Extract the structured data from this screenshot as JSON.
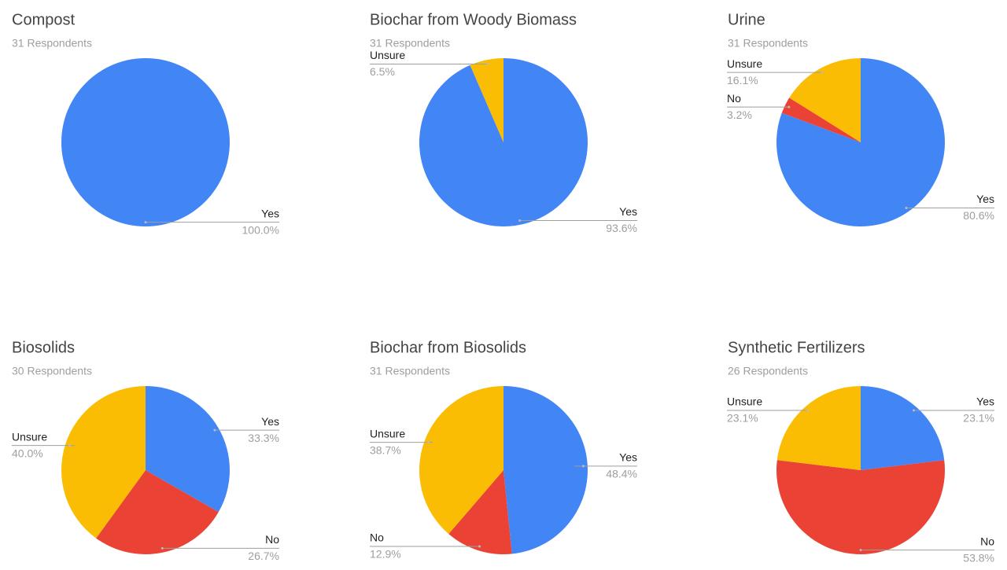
{
  "chart_data": [
    {
      "type": "pie",
      "title": "Compost",
      "subtitle": "31 Respondents",
      "categories": [
        "Yes"
      ],
      "values": [
        100.0
      ],
      "value_labels": [
        "100.0%"
      ],
      "colors": [
        "#4285f4"
      ]
    },
    {
      "type": "pie",
      "title": "Biochar from Woody Biomass",
      "subtitle": "31 Respondents",
      "categories": [
        "Yes",
        "Unsure"
      ],
      "values": [
        93.6,
        6.5
      ],
      "value_labels": [
        "93.6%",
        "6.5%"
      ],
      "colors": [
        "#4285f4",
        "#fbbc04"
      ]
    },
    {
      "type": "pie",
      "title": "Urine",
      "subtitle": "31 Respondents",
      "categories": [
        "Yes",
        "No",
        "Unsure"
      ],
      "values": [
        80.6,
        3.2,
        16.1
      ],
      "value_labels": [
        "80.6%",
        "3.2%",
        "16.1%"
      ],
      "colors": [
        "#4285f4",
        "#ea4335",
        "#fbbc04"
      ]
    },
    {
      "type": "pie",
      "title": "Biosolids",
      "subtitle": "30 Respondents",
      "categories": [
        "Yes",
        "No",
        "Unsure"
      ],
      "values": [
        33.3,
        26.7,
        40.0
      ],
      "value_labels": [
        "33.3%",
        "26.7%",
        "40.0%"
      ],
      "colors": [
        "#4285f4",
        "#ea4335",
        "#fbbc04"
      ]
    },
    {
      "type": "pie",
      "title": "Biochar from Biosolids",
      "subtitle": "31 Respondents",
      "categories": [
        "Yes",
        "No",
        "Unsure"
      ],
      "values": [
        48.4,
        12.9,
        38.7
      ],
      "value_labels": [
        "48.4%",
        "12.9%",
        "38.7%"
      ],
      "colors": [
        "#4285f4",
        "#ea4335",
        "#fbbc04"
      ]
    },
    {
      "type": "pie",
      "title": "Synthetic Fertilizers",
      "subtitle": "26 Respondents",
      "categories": [
        "Yes",
        "No",
        "Unsure"
      ],
      "values": [
        23.1,
        53.8,
        23.1
      ],
      "value_labels": [
        "23.1%",
        "53.8%",
        "23.1%"
      ],
      "colors": [
        "#4285f4",
        "#ea4335",
        "#fbbc04"
      ]
    }
  ]
}
